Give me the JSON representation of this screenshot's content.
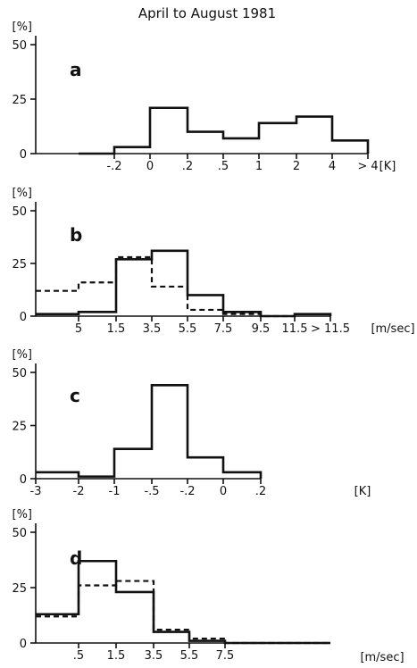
{
  "title": "April to August 1981",
  "chart_data": [
    {
      "type": "bar",
      "panel": "a",
      "ylabel": "[%]",
      "xunit": "[K]",
      "yticks": [
        "50",
        "25",
        "0"
      ],
      "ylim": [
        0,
        50
      ],
      "x_tick_labels": [
        "-.2",
        "0",
        ".2",
        ".5",
        "1",
        "2",
        "4",
        "> 4"
      ],
      "categories": [
        "< -.2",
        "-.2 – 0",
        "0 – .2",
        ".2 – .5",
        ".5 – 1",
        "1 – 2",
        "2 – 4",
        "> 4"
      ],
      "series": [
        {
          "style": "solid",
          "values": [
            0,
            3,
            21,
            10,
            7,
            14,
            17,
            6
          ]
        }
      ]
    },
    {
      "type": "bar",
      "panel": "b",
      "ylabel": "[%]",
      "xunit": "[m/sec]",
      "yticks": [
        "50",
        "25",
        "0"
      ],
      "ylim": [
        0,
        50
      ],
      "x_tick_labels": [
        "5",
        "1.5",
        "3.5",
        "5.5",
        "7.5",
        "9.5",
        "11.5",
        "> 11.5"
      ],
      "categories": [
        "< .5",
        ".5 – 1.5",
        "1.5 – 3.5",
        "3.5 – 5.5",
        "5.5 – 7.5",
        "7.5 – 9.5",
        "9.5 – 11.5",
        "> 11.5"
      ],
      "series": [
        {
          "style": "solid",
          "values": [
            1,
            2,
            27,
            31,
            10,
            2,
            0,
            1
          ]
        },
        {
          "style": "dashed",
          "values": [
            12,
            16,
            28,
            14,
            3,
            1,
            0,
            1
          ]
        }
      ]
    },
    {
      "type": "bar",
      "panel": "c",
      "ylabel": "[%]",
      "xunit": "[K]",
      "yticks": [
        "50",
        "25",
        "0"
      ],
      "ylim": [
        0,
        50
      ],
      "x_tick_labels": [
        "-3",
        "-2",
        "-1",
        "-.5",
        "-.2",
        "0",
        ".2"
      ],
      "categories": [
        "-3 – -2",
        "-2 – -1",
        "-1 – -.5",
        "-.5 – -.2",
        "-.2 – 0",
        "0 – .2"
      ],
      "series": [
        {
          "style": "solid",
          "values": [
            3,
            1,
            14,
            44,
            10,
            3
          ]
        }
      ]
    },
    {
      "type": "bar",
      "panel": "d",
      "ylabel": "[%]",
      "xunit": "[m/sec]",
      "yticks": [
        "50",
        "25",
        "0"
      ],
      "ylim": [
        0,
        50
      ],
      "x_tick_labels": [
        ".5",
        "1.5",
        "3.5",
        "5.5",
        "7.5"
      ],
      "categories": [
        "< .5",
        ".5 – 1.5",
        "1.5 – 3.5",
        "3.5 – 5.5",
        "5.5 – 7.5",
        "> 7.5"
      ],
      "series": [
        {
          "style": "solid",
          "values": [
            13,
            37,
            23,
            5,
            1,
            0
          ]
        },
        {
          "style": "dashed",
          "values": [
            12,
            26,
            28,
            6,
            2,
            0
          ]
        }
      ]
    }
  ]
}
